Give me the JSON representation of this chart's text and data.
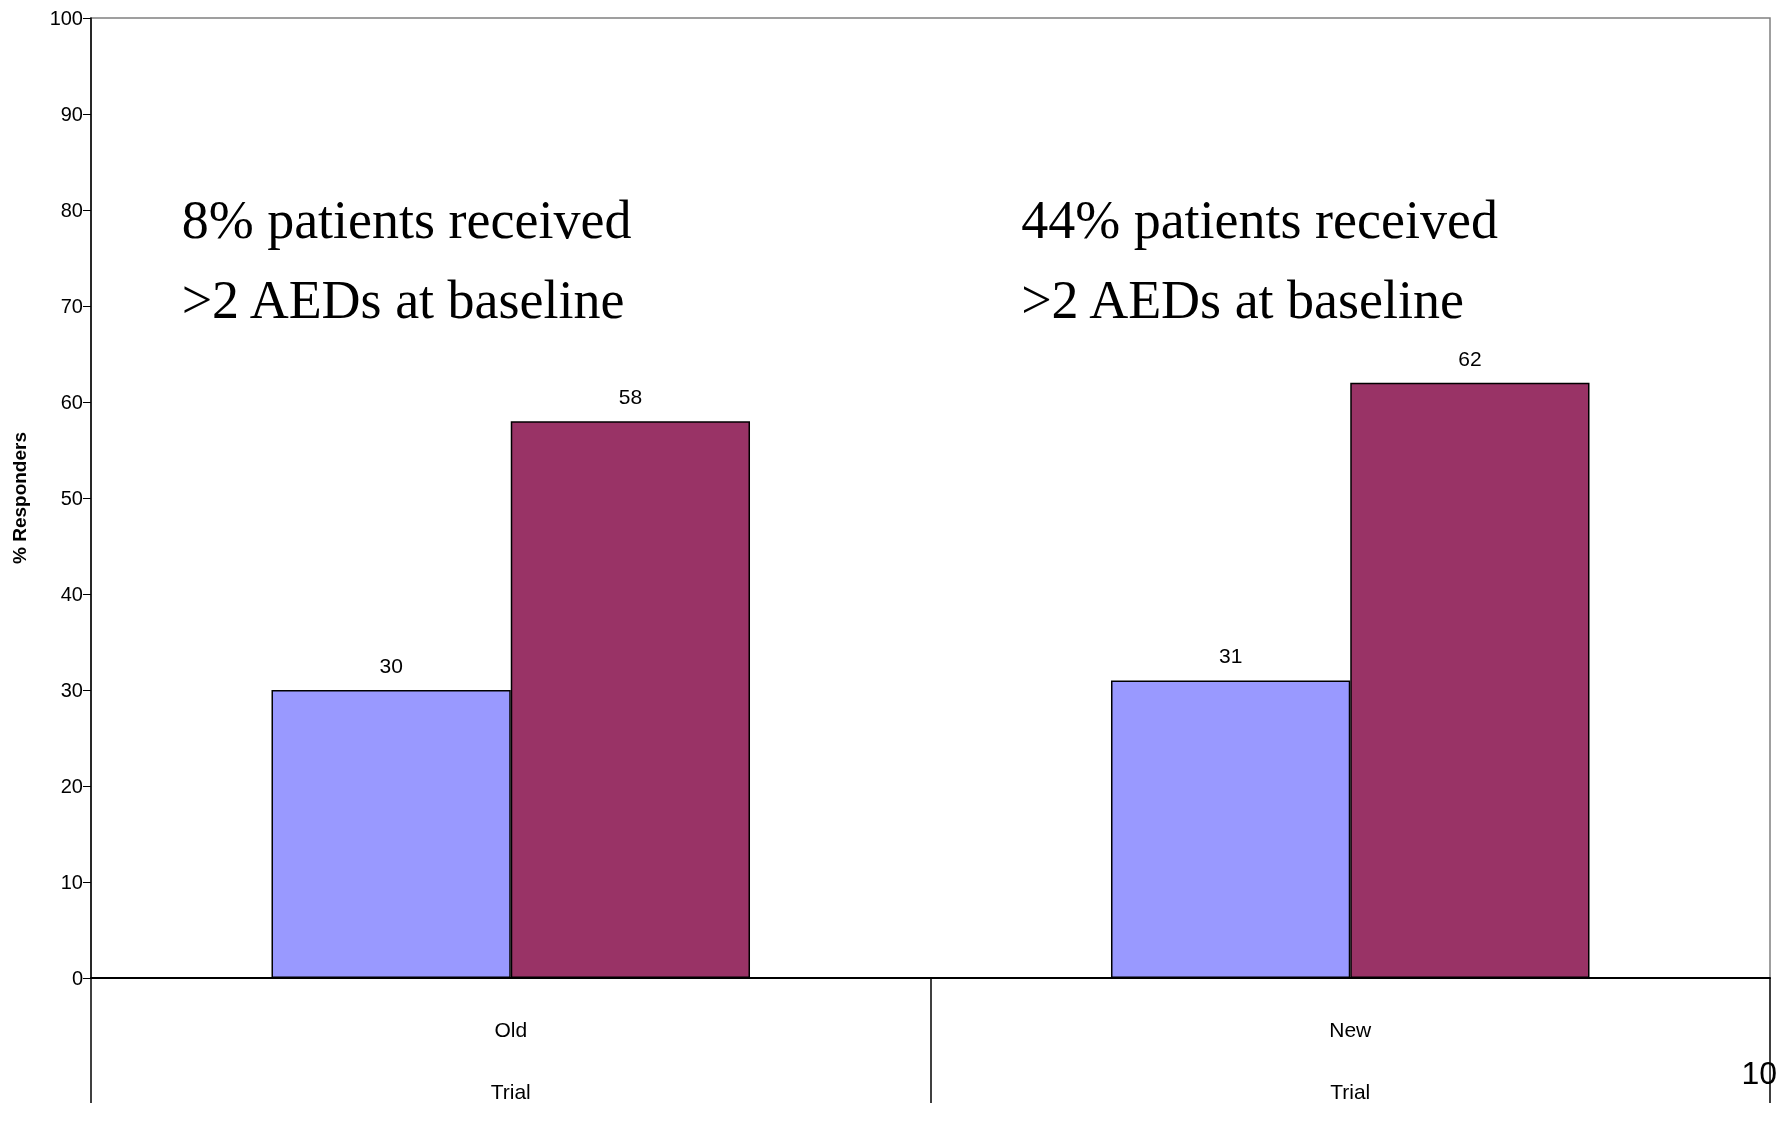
{
  "chart_data": {
    "type": "bar",
    "categories": [
      "Old\nTrial",
      "New\nTrial"
    ],
    "series": [
      {
        "color": "#9999ff",
        "values": [
          30,
          31
        ]
      },
      {
        "color": "#993366",
        "values": [
          58,
          62
        ]
      }
    ],
    "ylabel": "% Responders",
    "ylim": [
      0,
      100
    ],
    "yticks": [
      0,
      10,
      20,
      30,
      40,
      50,
      60,
      70,
      80,
      90,
      100
    ],
    "data_labels": true,
    "grid": false,
    "annotations": [
      "8% patients received\n>2 AEDs at baseline",
      "44% patients received\n>2 AEDs at baseline",
      "10"
    ]
  }
}
